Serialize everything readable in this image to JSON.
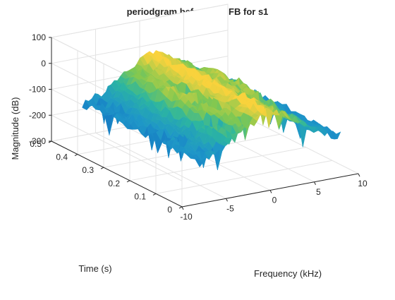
{
  "chart_data": {
    "type": "surface",
    "title": "periodgram before mel FB for s1",
    "xlabel": "Frequency (kHz)",
    "ylabel": "Time (s)",
    "zlabel": "Magnitude (dB)",
    "xlim": [
      -10,
      10
    ],
    "ylim": [
      0,
      0.5
    ],
    "zlim": [
      -300,
      100
    ],
    "xticks": [
      -10,
      -5,
      0,
      5,
      10
    ],
    "yticks": [
      0,
      0.1,
      0.2,
      0.3,
      0.4,
      0.5
    ],
    "zticks": [
      -300,
      -200,
      -100,
      0,
      100
    ],
    "xtick_labels": [
      "-10",
      "-5",
      "0",
      "5",
      "10"
    ],
    "ytick_labels": [
      "0",
      "0.1",
      "0.2",
      "0.3",
      "0.4",
      "0.5"
    ],
    "ztick_labels": [
      "-300",
      "-200",
      "-100",
      "0",
      "100"
    ],
    "grid": true,
    "colormap": "parula",
    "surface_profile": {
      "description_values": "approximate peak magnitude (dB) along frequency, symmetric about 0 kHz",
      "frequency_khz": [
        -8,
        -6,
        -4,
        -2,
        0,
        2,
        4,
        6,
        8
      ],
      "magnitude_db": [
        -140,
        -120,
        -80,
        -30,
        10,
        -30,
        -80,
        -120,
        -140
      ]
    },
    "surface_data_extent": {
      "frequency_khz": [
        -8,
        8
      ],
      "time_s": [
        0,
        0.45
      ],
      "magnitude_db": [
        -300,
        10
      ]
    },
    "colors": {
      "low": "#0c5fbf",
      "mid": "#2cb6a0",
      "high": "#f9d23c",
      "grid": "#e3e3e3",
      "axis": "#262626"
    }
  }
}
